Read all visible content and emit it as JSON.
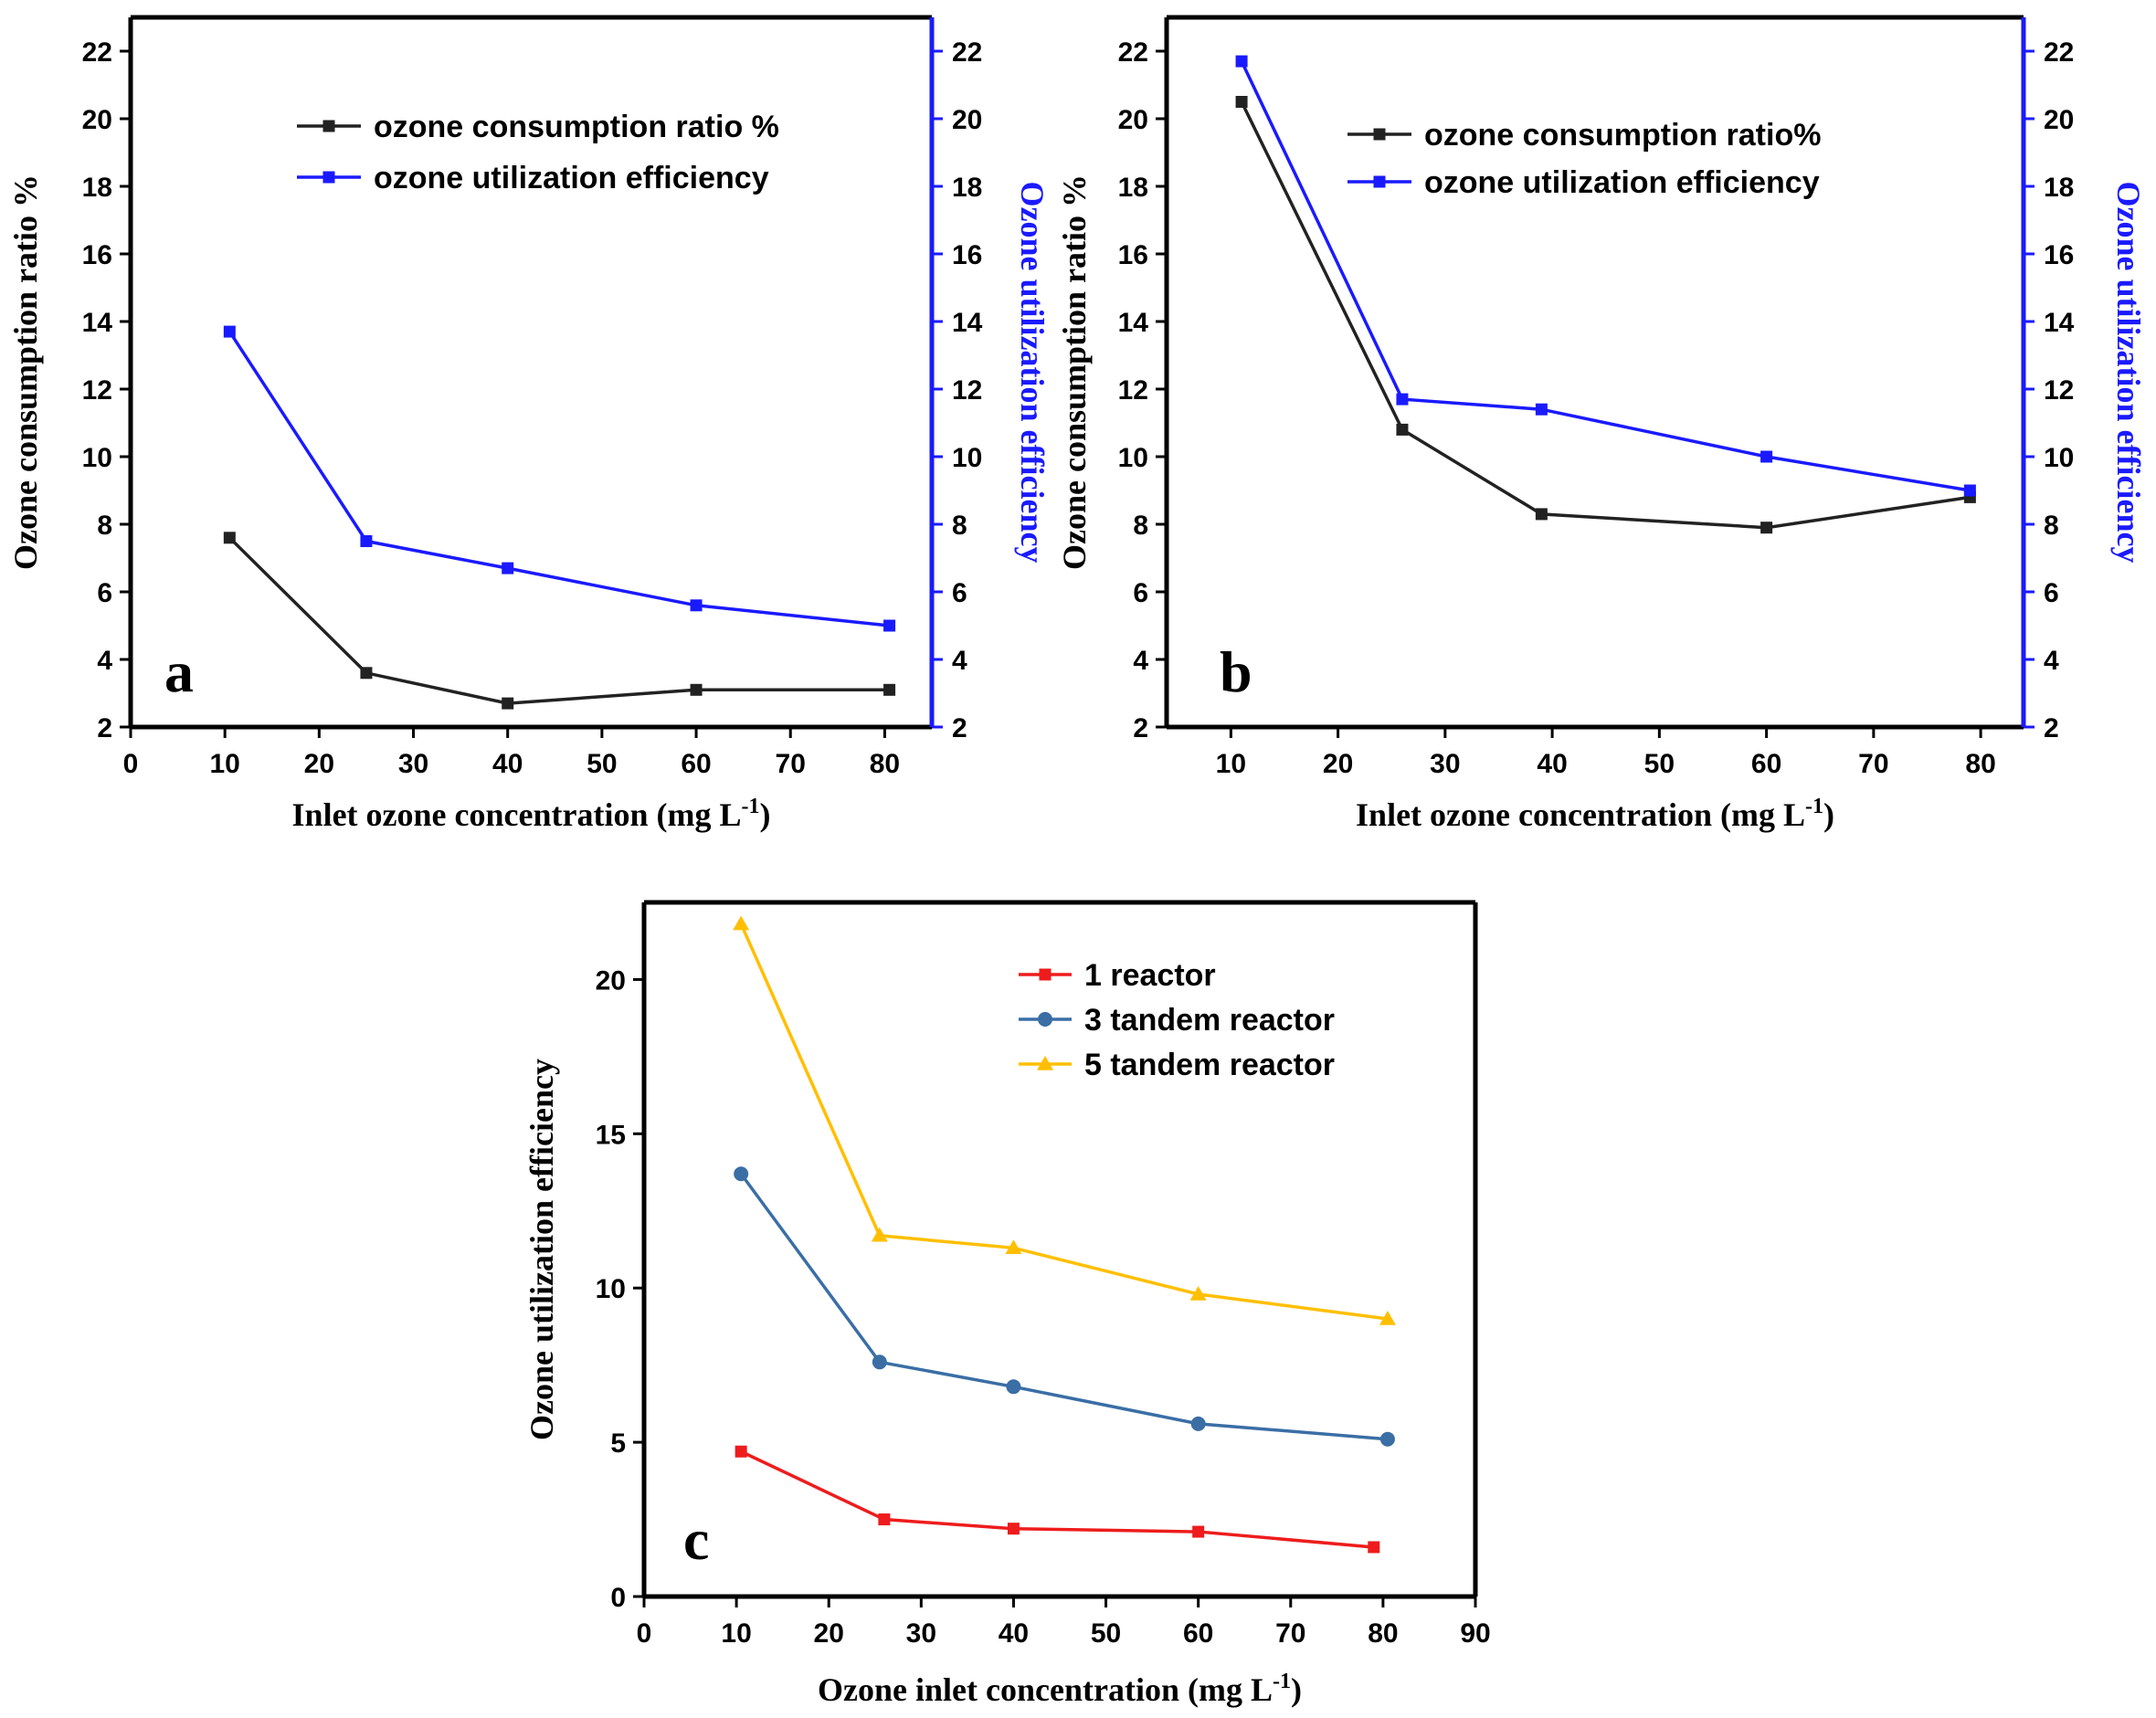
{
  "chart_data": [
    {
      "id": "a",
      "type": "line",
      "panel_label": "a",
      "xlabel": "Inlet ozone concentration (mg L",
      "xlabel_sup": "-1",
      "xlabel_tail": ")",
      "ylabel": "Ozone consumption ratio %",
      "y2label": "Ozone utilization efficiency",
      "xlim": [
        0,
        85
      ],
      "ylim": [
        2,
        23
      ],
      "y2lim": [
        2,
        23
      ],
      "xticks": [
        0,
        10,
        20,
        30,
        40,
        50,
        60,
        70,
        80
      ],
      "yticks": [
        2,
        4,
        6,
        8,
        10,
        12,
        14,
        16,
        18,
        20,
        22
      ],
      "y2ticks": [
        2,
        4,
        6,
        8,
        10,
        12,
        14,
        16,
        18,
        20,
        22
      ],
      "y2_color": "#1a1aff",
      "series": [
        {
          "name": "ozone consumption ratio %",
          "color": "#222222",
          "marker": "square",
          "axis": "left",
          "x": [
            10.5,
            25,
            40,
            60,
            80.5
          ],
          "values": [
            7.6,
            3.6,
            2.7,
            3.1,
            3.1
          ]
        },
        {
          "name": "ozone utilization efficiency",
          "color": "#1a1aff",
          "marker": "square",
          "axis": "right",
          "x": [
            10.5,
            25,
            40,
            60,
            80.5
          ],
          "values": [
            13.7,
            7.5,
            6.7,
            5.6,
            5.0
          ]
        }
      ]
    },
    {
      "id": "b",
      "type": "line",
      "panel_label": "b",
      "xlabel": "Inlet ozone concentration (mg L",
      "xlabel_sup": "-1",
      "xlabel_tail": ")",
      "ylabel": "Ozone consumption ratio %",
      "y2label": "Ozone utilization efficiency",
      "xlim": [
        4,
        84
      ],
      "ylim": [
        2,
        23
      ],
      "y2lim": [
        2,
        23
      ],
      "xticks": [
        10,
        20,
        30,
        40,
        50,
        60,
        70,
        80
      ],
      "yticks": [
        2,
        4,
        6,
        8,
        10,
        12,
        14,
        16,
        18,
        20,
        22
      ],
      "y2ticks": [
        2,
        4,
        6,
        8,
        10,
        12,
        14,
        16,
        18,
        20,
        22
      ],
      "y2_color": "#1a1aff",
      "series": [
        {
          "name": "ozone consumption ratio%",
          "color": "#222222",
          "marker": "square",
          "axis": "left",
          "x": [
            11,
            26,
            39,
            60,
            79
          ],
          "values": [
            20.5,
            10.8,
            8.3,
            7.9,
            8.8
          ]
        },
        {
          "name": "ozone   utilization   efficiency",
          "color": "#1a1aff",
          "marker": "square",
          "axis": "right",
          "x": [
            11,
            26,
            39,
            60,
            79
          ],
          "values": [
            21.7,
            11.7,
            11.4,
            10.0,
            9.0
          ]
        }
      ]
    },
    {
      "id": "c",
      "type": "line",
      "panel_label": "c",
      "xlabel": "Ozone inlet concentration (mg L",
      "xlabel_sup": "-1",
      "xlabel_tail": ")",
      "ylabel": "Ozone utilization efficiency",
      "xlim": [
        0,
        90
      ],
      "ylim": [
        0,
        22.5
      ],
      "xticks": [
        0,
        10,
        20,
        30,
        40,
        50,
        60,
        70,
        80,
        90
      ],
      "yticks": [
        0,
        5,
        10,
        15,
        20
      ],
      "series": [
        {
          "name": "1 reactor",
          "color": "#ee1c1c",
          "marker": "square",
          "x": [
            10.5,
            26,
            40,
            60,
            79
          ],
          "values": [
            4.7,
            2.5,
            2.2,
            2.1,
            1.6
          ]
        },
        {
          "name": "3 tandem reactor",
          "color": "#3a6ea5",
          "marker": "circle",
          "x": [
            10.5,
            25.5,
            40,
            60,
            80.5
          ],
          "values": [
            13.7,
            7.6,
            6.8,
            5.6,
            5.1
          ]
        },
        {
          "name": "5 tandem reactor",
          "color": "#ffbf00",
          "marker": "triangle",
          "x": [
            10.5,
            25.5,
            40,
            60,
            80.5
          ],
          "values": [
            21.8,
            11.7,
            11.3,
            9.8,
            9.0
          ]
        }
      ]
    }
  ]
}
